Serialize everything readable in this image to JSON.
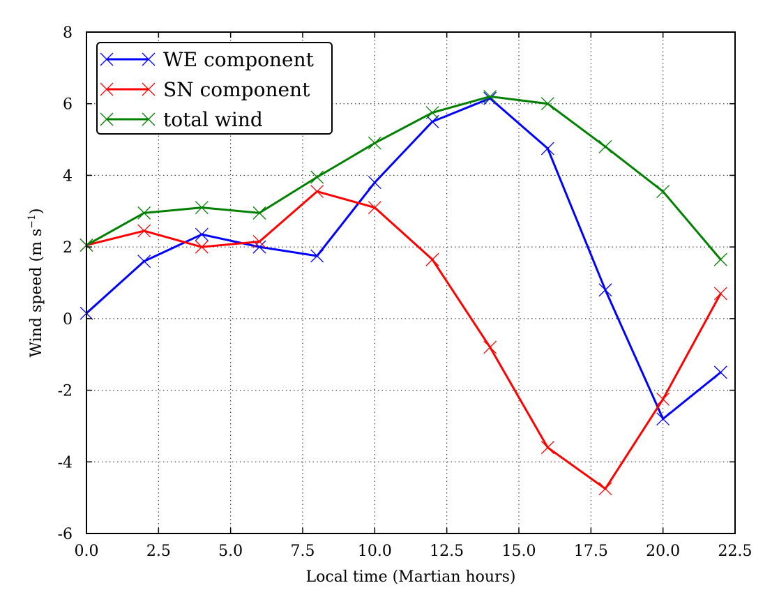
{
  "chart_data": {
    "type": "line",
    "xlabel": "Local time (Martian hours)",
    "ylabel_main": "Wind speed (m s",
    "ylabel_sup": "−1",
    "ylabel_close": ")",
    "xlim": [
      0,
      22.5
    ],
    "ylim": [
      -6,
      8
    ],
    "xticks": [
      0,
      2.5,
      5,
      7.5,
      10,
      12.5,
      15,
      17.5,
      20,
      22.5
    ],
    "xtick_labels": [
      "0.0",
      "2.5",
      "5.0",
      "7.5",
      "10.0",
      "12.5",
      "15.0",
      "17.5",
      "20.0",
      "22.5"
    ],
    "yticks": [
      -6,
      -4,
      -2,
      0,
      2,
      4,
      6,
      8
    ],
    "ytick_labels": [
      "-6",
      "-4",
      "-2",
      "0",
      "2",
      "4",
      "6",
      "8"
    ],
    "grid": true,
    "legend_position": "top-left",
    "marker": "x",
    "x": [
      0,
      2,
      4,
      6,
      8,
      10,
      12,
      14,
      16,
      18,
      20,
      22
    ],
    "series": [
      {
        "name": "WE component",
        "color": "#0000ff",
        "values": [
          0.15,
          1.6,
          2.35,
          2.0,
          1.75,
          3.8,
          5.5,
          6.15,
          4.75,
          0.8,
          -2.8,
          -1.5
        ]
      },
      {
        "name": "SN component",
        "color": "#ff0000",
        "values": [
          2.05,
          2.45,
          2.0,
          2.15,
          3.55,
          3.1,
          1.65,
          -0.8,
          -3.6,
          -4.75,
          -2.25,
          0.7
        ]
      },
      {
        "name": "total wind",
        "color": "#008000",
        "values": [
          2.05,
          2.95,
          3.1,
          2.95,
          3.95,
          4.9,
          5.75,
          6.2,
          6.0,
          4.8,
          3.55,
          1.65
        ]
      }
    ]
  }
}
